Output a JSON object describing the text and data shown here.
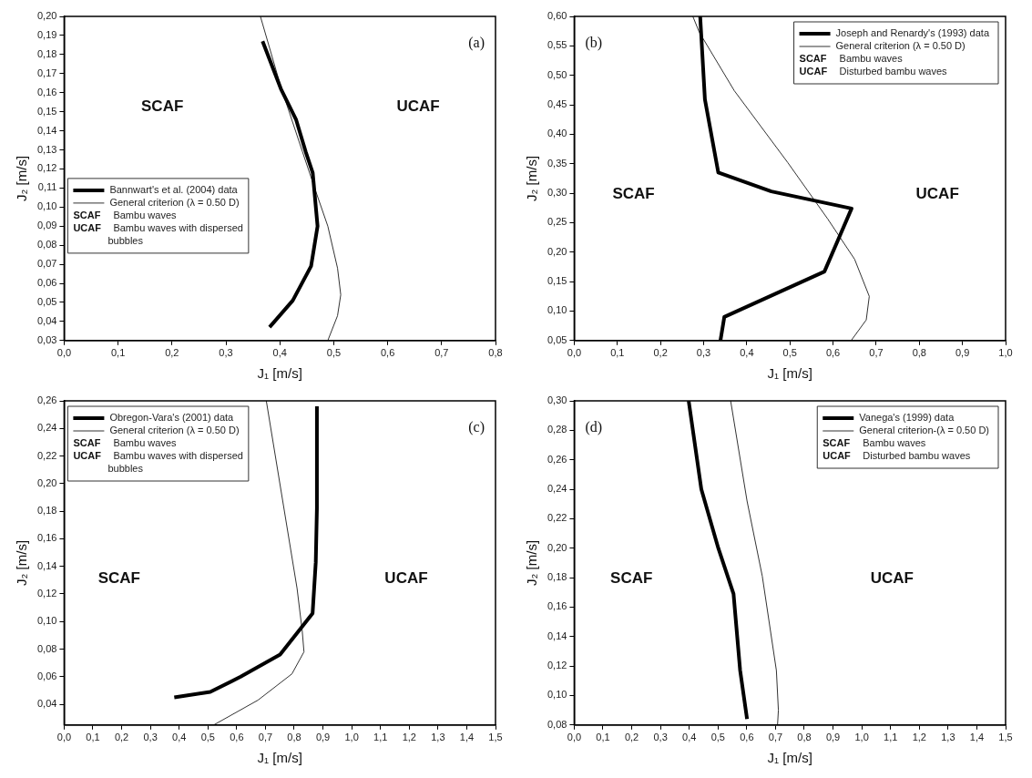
{
  "chart_data": [
    {
      "type": "line",
      "title": "(a)",
      "xlabel": "J₁ [m/s]",
      "ylabel": "J₂ [m/s]",
      "legend": "left",
      "line_style": "solid",
      "xlim": [
        0,
        0.8
      ],
      "xticks": [
        {
          "value": 0,
          "label": "0,0"
        },
        {
          "value": 0.1,
          "label": "0,1"
        },
        {
          "value": 0.2,
          "label": "0,2"
        },
        {
          "value": 0.3,
          "label": "0,3"
        },
        {
          "value": 0.4,
          "label": "0,4"
        },
        {
          "value": 0.5,
          "label": "0,5"
        },
        {
          "value": 0.6,
          "label": "0,6"
        },
        {
          "value": 0.7,
          "label": "0,7"
        },
        {
          "value": 0.8,
          "label": "0,8"
        }
      ],
      "ylim": [
        0.03,
        0.2
      ],
      "yticks": [
        {
          "value": 0.03,
          "label": "0,03"
        },
        {
          "value": 0.04,
          "label": "0,04"
        },
        {
          "value": 0.05,
          "label": "0,05"
        },
        {
          "value": 0.06,
          "label": "0,06"
        },
        {
          "value": 0.07,
          "label": "0,07"
        },
        {
          "value": 0.08,
          "label": "0,08"
        },
        {
          "value": 0.09,
          "label": "0,09"
        },
        {
          "value": 0.1,
          "label": "0,10"
        },
        {
          "value": 0.11,
          "label": "0,11"
        },
        {
          "value": 0.12,
          "label": "0,12"
        },
        {
          "value": 0.13,
          "label": "0,13"
        },
        {
          "value": 0.14,
          "label": "0,14"
        },
        {
          "value": 0.15,
          "label": "0,15"
        },
        {
          "value": 0.16,
          "label": "0,16"
        },
        {
          "value": 0.17,
          "label": "0,17"
        },
        {
          "value": 0.18,
          "label": "0,18"
        },
        {
          "value": 0.19,
          "label": "0,19"
        },
        {
          "value": 0.2,
          "label": "0,20"
        }
      ],
      "series": [
        {
          "name": "Bannwart's et al. (2004) data",
          "color": "#000000",
          "x": [
            0.368,
            0.402,
            0.43,
            0.448,
            0.461,
            0.47,
            0.458,
            0.424,
            0.381
          ],
          "values": [
            0.187,
            0.162,
            0.146,
            0.129,
            0.118,
            0.09,
            0.069,
            0.051,
            0.037
          ]
        },
        {
          "name": "General criterion (λ = 0.50 D)",
          "color": "#333333",
          "x": [
            0.364,
            0.402,
            0.442,
            0.467,
            0.489,
            0.507,
            0.513,
            0.507,
            0.489
          ],
          "values": [
            0.2,
            0.163,
            0.129,
            0.108,
            0.09,
            0.068,
            0.054,
            0.043,
            0.03
          ]
        }
      ],
      "annotations": [
        "SCAF Bambu waves",
        "UCAF Bambu waves with dispersed bubbles",
        "SCAF",
        "UCAF"
      ]
    },
    {
      "type": "line",
      "title": "(b)",
      "xlabel": "J₁ [m/s]",
      "ylabel": "J₂ [m/s]",
      "legend": "top right",
      "line_style": "solid",
      "xlim": [
        0,
        1
      ],
      "xticks": [
        {
          "value": 0,
          "label": "0,0"
        },
        {
          "value": 0.1,
          "label": "0,1"
        },
        {
          "value": 0.2,
          "label": "0,2"
        },
        {
          "value": 0.3,
          "label": "0,3"
        },
        {
          "value": 0.4,
          "label": "0,4"
        },
        {
          "value": 0.5,
          "label": "0,5"
        },
        {
          "value": 0.6,
          "label": "0,6"
        },
        {
          "value": 0.7,
          "label": "0,7"
        },
        {
          "value": 0.8,
          "label": "0,8"
        },
        {
          "value": 0.9,
          "label": "0,9"
        },
        {
          "value": 1,
          "label": "1,0"
        }
      ],
      "ylim": [
        0.05,
        0.6
      ],
      "yticks": [
        {
          "value": 0.05,
          "label": "0,05"
        },
        {
          "value": 0.1,
          "label": "0,10"
        },
        {
          "value": 0.15,
          "label": "0,15"
        },
        {
          "value": 0.2,
          "label": "0,20"
        },
        {
          "value": 0.25,
          "label": "0,25"
        },
        {
          "value": 0.3,
          "label": "0,30"
        },
        {
          "value": 0.35,
          "label": "0,35"
        },
        {
          "value": 0.4,
          "label": "0,40"
        },
        {
          "value": 0.45,
          "label": "0,45"
        },
        {
          "value": 0.5,
          "label": "0,50"
        },
        {
          "value": 0.55,
          "label": "0,55"
        },
        {
          "value": 0.6,
          "label": "0,60"
        }
      ],
      "series": [
        {
          "name": "Joseph and Renardy's (1993) data",
          "color": "#000000",
          "x": [
            0.292,
            0.303,
            0.334,
            0.457,
            0.643,
            0.58,
            0.348,
            0.339
          ],
          "values": [
            0.6,
            0.459,
            0.335,
            0.303,
            0.274,
            0.167,
            0.09,
            0.05
          ]
        },
        {
          "name": "General criterion (λ = 0.50 D)",
          "color": "#333333",
          "x": [
            0.275,
            0.29,
            0.371,
            0.495,
            0.588,
            0.65,
            0.684,
            0.677,
            0.642
          ],
          "values": [
            0.6,
            0.573,
            0.474,
            0.352,
            0.256,
            0.188,
            0.125,
            0.085,
            0.05
          ]
        }
      ],
      "annotations": [
        "SCAF Bambu waves",
        "UCAF Disturbed bambu waves",
        "SCAF",
        "UCAF"
      ]
    },
    {
      "type": "line",
      "title": "(c)",
      "xlabel": "J₁ [m/s]",
      "ylabel": "J₂ [m/s]",
      "legend": "top left",
      "line_style": "solid",
      "xlim": [
        0,
        1.5
      ],
      "xticks": [
        {
          "value": 0,
          "label": "0,0"
        },
        {
          "value": 0.1,
          "label": "0,1"
        },
        {
          "value": 0.2,
          "label": "0,2"
        },
        {
          "value": 0.3,
          "label": "0,3"
        },
        {
          "value": 0.4,
          "label": "0,4"
        },
        {
          "value": 0.5,
          "label": "0,5"
        },
        {
          "value": 0.6,
          "label": "0,6"
        },
        {
          "value": 0.7,
          "label": "0,7"
        },
        {
          "value": 0.8,
          "label": "0,8"
        },
        {
          "value": 0.9,
          "label": "0,9"
        },
        {
          "value": 1,
          "label": "1,0"
        },
        {
          "value": 1.1,
          "label": "1,1"
        },
        {
          "value": 1.2,
          "label": "1,2"
        },
        {
          "value": 1.3,
          "label": "1,3"
        },
        {
          "value": 1.4,
          "label": "1,4"
        },
        {
          "value": 1.5,
          "label": "1,5"
        }
      ],
      "ylim": [
        0.025,
        0.26
      ],
      "yticks": [
        {
          "value": 0.04,
          "label": "0,04"
        },
        {
          "value": 0.06,
          "label": "0,06"
        },
        {
          "value": 0.08,
          "label": "0,08"
        },
        {
          "value": 0.1,
          "label": "0,10"
        },
        {
          "value": 0.12,
          "label": "0,12"
        },
        {
          "value": 0.14,
          "label": "0,14"
        },
        {
          "value": 0.16,
          "label": "0,16"
        },
        {
          "value": 0.18,
          "label": "0,18"
        },
        {
          "value": 0.2,
          "label": "0,20"
        },
        {
          "value": 0.22,
          "label": "0,22"
        },
        {
          "value": 0.24,
          "label": "0,24"
        },
        {
          "value": 0.26,
          "label": "0,26"
        }
      ],
      "series": [
        {
          "name": "Obregon-Vara's (2001) data",
          "color": "#000000",
          "x": [
            0.383,
            0.508,
            0.614,
            0.751,
            0.864,
            0.875,
            0.879,
            0.879
          ],
          "values": [
            0.045,
            0.049,
            0.06,
            0.076,
            0.106,
            0.143,
            0.182,
            0.256
          ]
        },
        {
          "name": "General criterion (λ = 0.50 D)",
          "color": "#333333",
          "x": [
            0.703,
            0.81,
            0.828,
            0.834,
            0.792,
            0.674,
            0.52
          ],
          "values": [
            0.26,
            0.124,
            0.093,
            0.078,
            0.062,
            0.043,
            0.025
          ]
        }
      ],
      "annotations": [
        "SCAF Bambu waves",
        "UCAF Bambu waves with dispersed bubbles",
        "SCAF",
        "UCAF"
      ]
    },
    {
      "type": "line",
      "title": "(d)",
      "xlabel": "J₁ [m/s]",
      "ylabel": "J₂ [m/s]",
      "legend": "top right",
      "line_style": "solid",
      "xlim": [
        0,
        1.5
      ],
      "xticks": [
        {
          "value": 0,
          "label": "0,0"
        },
        {
          "value": 0.1,
          "label": "0,1"
        },
        {
          "value": 0.2,
          "label": "0,2"
        },
        {
          "value": 0.3,
          "label": "0,3"
        },
        {
          "value": 0.4,
          "label": "0,4"
        },
        {
          "value": 0.5,
          "label": "0,5"
        },
        {
          "value": 0.6,
          "label": "0,6"
        },
        {
          "value": 0.7,
          "label": "0,7"
        },
        {
          "value": 0.8,
          "label": "0,8"
        },
        {
          "value": 0.9,
          "label": "0,9"
        },
        {
          "value": 1,
          "label": "1,0"
        },
        {
          "value": 1.1,
          "label": "1,1"
        },
        {
          "value": 1.2,
          "label": "1,2"
        },
        {
          "value": 1.3,
          "label": "1,3"
        },
        {
          "value": 1.4,
          "label": "1,4"
        },
        {
          "value": 1.5,
          "label": "1,5"
        }
      ],
      "ylim": [
        0.08,
        0.3
      ],
      "yticks": [
        {
          "value": 0.08,
          "label": "0,08"
        },
        {
          "value": 0.1,
          "label": "0,10"
        },
        {
          "value": 0.12,
          "label": "0,12"
        },
        {
          "value": 0.14,
          "label": "0,14"
        },
        {
          "value": 0.16,
          "label": "0,16"
        },
        {
          "value": 0.18,
          "label": "0,18"
        },
        {
          "value": 0.2,
          "label": "0,20"
        },
        {
          "value": 0.22,
          "label": "0,22"
        },
        {
          "value": 0.24,
          "label": "0,24"
        },
        {
          "value": 0.26,
          "label": "0,26"
        },
        {
          "value": 0.28,
          "label": "0,28"
        },
        {
          "value": 0.3,
          "label": "0,30"
        }
      ],
      "series": [
        {
          "name": "Vanega's (1999) data",
          "color": "#000000",
          "x": [
            0.398,
            0.442,
            0.501,
            0.554,
            0.577,
            0.601
          ],
          "values": [
            0.3,
            0.24,
            0.2,
            0.169,
            0.117,
            0.084
          ]
        },
        {
          "name": "General criterion-(λ = 0.50 D)",
          "color": "#333333",
          "x": [
            0.544,
            0.601,
            0.654,
            0.703,
            0.71,
            0.707
          ],
          "values": [
            0.3,
            0.232,
            0.181,
            0.117,
            0.09,
            0.08
          ]
        }
      ],
      "annotations": [
        "SCAF Bambu waves",
        "UCAF Disturbed bambu waves",
        "SCAF",
        "UCAF"
      ]
    }
  ]
}
